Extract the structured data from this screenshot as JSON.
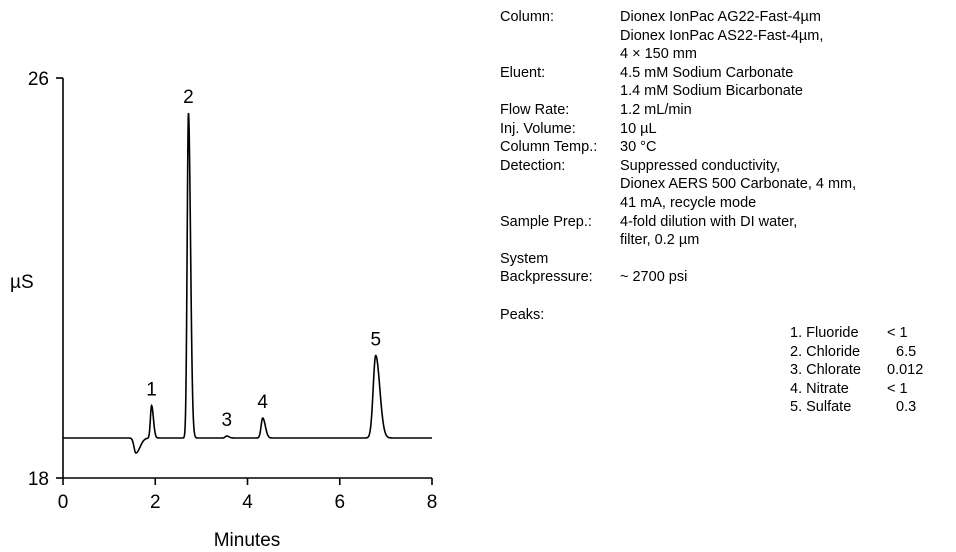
{
  "chart_data": {
    "type": "line",
    "ylabel": "µS",
    "xlabel": "Minutes",
    "xlim": [
      0,
      8
    ],
    "ylim": [
      18,
      26
    ],
    "x_ticks": [
      "0",
      "2",
      "4",
      "6",
      "8"
    ],
    "y_ticks": [
      "18",
      "26"
    ],
    "baseline": 18.8,
    "peaks": [
      {
        "label": "1",
        "name": "Fluoride",
        "x": 1.92,
        "y": 19.45
      },
      {
        "label": "2",
        "name": "Chloride",
        "x": 2.72,
        "y": 25.3
      },
      {
        "label": "3",
        "name": "Chlorate",
        "x": 3.55,
        "y": 18.84
      },
      {
        "label": "4",
        "name": "Nitrate",
        "x": 4.33,
        "y": 19.2
      },
      {
        "label": "5",
        "name": "Sulfate",
        "x": 6.78,
        "y": 20.45
      }
    ],
    "dip": {
      "x": 1.58,
      "y": 18.5
    }
  },
  "conditions": [
    {
      "label": "Column:",
      "values": [
        "Dionex IonPac AG22-Fast-4µm",
        "Dionex IonPac AS22-Fast-4µm,",
        "4 × 150 mm"
      ]
    },
    {
      "label": "Eluent:",
      "values": [
        "4.5 mM Sodium Carbonate",
        "1.4 mM Sodium Bicarbonate"
      ]
    },
    {
      "label": "Flow Rate:",
      "values": [
        "1.2 mL/min"
      ]
    },
    {
      "label": "Inj. Volume:",
      "values": [
        "10 µL"
      ]
    },
    {
      "label": "Column Temp.:",
      "values": [
        "30 °C"
      ]
    },
    {
      "label": "Detection:",
      "values": [
        "Suppressed conductivity,",
        "Dionex AERS 500 Carbonate, 4 mm,",
        "41 mA, recycle mode"
      ]
    },
    {
      "label": "Sample Prep.:",
      "values": [
        "4-fold dilution with DI water,",
        "filter, 0.2 µm"
      ]
    },
    {
      "label": "System",
      "values": [
        ""
      ]
    },
    {
      "label": "Backpressure:",
      "values": [
        "~ 2700 psi"
      ]
    }
  ],
  "peaks_label": "Peaks:",
  "peak_list": [
    {
      "name": "1. Fluoride",
      "value": "< 1"
    },
    {
      "name": "2. Chloride",
      "value": "6.5"
    },
    {
      "name": "3. Chlorate",
      "value": "0.012"
    },
    {
      "name": "4. Nitrate",
      "value": "< 1"
    },
    {
      "name": "5. Sulfate",
      "value": "0.3"
    }
  ]
}
